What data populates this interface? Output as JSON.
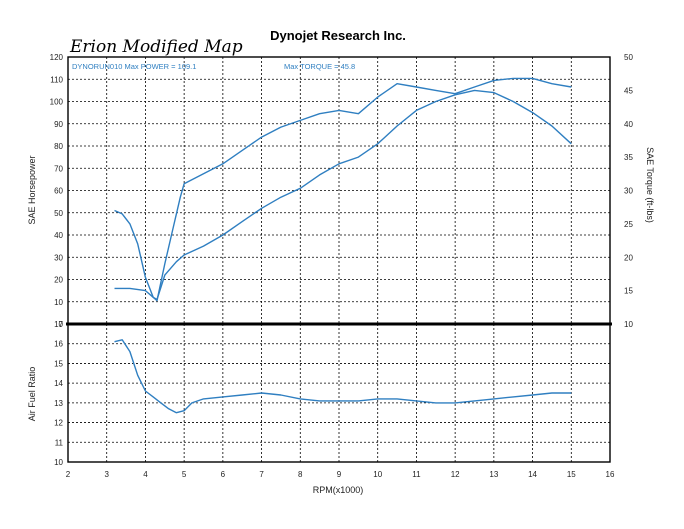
{
  "header": {
    "company": "Dynojet Research Inc.",
    "handwritten_title": "Erion Modified Map"
  },
  "colors": {
    "curve": "#2f7fc1",
    "grid": "#000000",
    "frame": "#000000",
    "text": "#222222"
  },
  "chart_data": [
    {
      "type": "line",
      "title": "",
      "legend": [
        "DYNORUN010 Max POWER = 109.1",
        "Max TORQUE = 45.8"
      ],
      "xlabel": "",
      "ylabel_left": "SAE Horsepower",
      "ylabel_right": "SAE Torque (ft-lbs)",
      "xlim": [
        2,
        16
      ],
      "ylim_left": [
        0,
        120
      ],
      "ylim_right": [
        10,
        50
      ],
      "x_ticks": [
        "2",
        "3",
        "4",
        "5",
        "6",
        "7",
        "8",
        "9",
        "10",
        "11",
        "12",
        "13",
        "14",
        "15",
        "16"
      ],
      "y_left_ticks": [
        "0",
        "10",
        "20",
        "30",
        "40",
        "50",
        "60",
        "70",
        "80",
        "90",
        "100",
        "110",
        "120"
      ],
      "y_right_ticks": [
        "10",
        "15",
        "20",
        "25",
        "30",
        "35",
        "40",
        "45",
        "50"
      ],
      "grid": true,
      "series": [
        {
          "name": "Power",
          "axis": "left",
          "x": [
            3.2,
            3.6,
            4.0,
            4.2,
            4.3,
            4.5,
            4.8,
            5.0,
            5.5,
            6.0,
            6.5,
            7.0,
            7.5,
            8.0,
            8.5,
            9.0,
            9.5,
            10.0,
            10.5,
            11.0,
            11.5,
            12.0,
            12.5,
            13.0,
            13.5,
            14.0,
            14.5,
            15.0
          ],
          "y": [
            16,
            16,
            15,
            12,
            11,
            22,
            28,
            31,
            35,
            40,
            46,
            52,
            57,
            61,
            67,
            72,
            75,
            81,
            89,
            96,
            100,
            103,
            105,
            104,
            100,
            95,
            89,
            81
          ]
        },
        {
          "name": "Torque",
          "axis": "right",
          "x": [
            3.2,
            3.4,
            3.6,
            3.8,
            4.0,
            4.2,
            4.3,
            4.5,
            4.7,
            4.9,
            5.0,
            5.5,
            6.0,
            6.5,
            7.0,
            7.5,
            8.0,
            8.5,
            9.0,
            9.5,
            10.0,
            10.5,
            11.0,
            11.5,
            12.0,
            12.5,
            13.0,
            13.5,
            14.0,
            14.5,
            15.0
          ],
          "y": [
            27,
            26.5,
            25,
            22,
            17,
            14,
            13.5,
            19,
            24,
            29,
            31,
            32.5,
            34,
            36,
            38,
            39.5,
            40.5,
            41.5,
            42,
            41.5,
            44,
            46,
            45.5,
            45,
            44.5,
            45.5,
            46.5,
            46.8,
            46.8,
            46,
            45.5
          ]
        }
      ]
    },
    {
      "type": "line",
      "title": "",
      "xlabel": "RPM(x1000)",
      "ylabel": "Air Fuel Ratio",
      "xlim": [
        2,
        16
      ],
      "ylim": [
        10,
        17
      ],
      "x_ticks": [
        "2",
        "3",
        "4",
        "5",
        "6",
        "7",
        "8",
        "9",
        "10",
        "11",
        "12",
        "13",
        "14",
        "15",
        "16"
      ],
      "y_ticks": [
        "10",
        "11",
        "12",
        "13",
        "14",
        "15",
        "16",
        "17"
      ],
      "grid": true,
      "series": [
        {
          "name": "Air Fuel Ratio",
          "x": [
            3.2,
            3.4,
            3.6,
            3.8,
            4.0,
            4.2,
            4.4,
            4.6,
            4.8,
            5.0,
            5.2,
            5.5,
            6.0,
            6.5,
            7.0,
            7.5,
            8.0,
            8.5,
            9.0,
            9.5,
            10.0,
            10.5,
            11.0,
            11.5,
            12.0,
            12.5,
            13.0,
            13.5,
            14.0,
            14.5,
            15.0
          ],
          "y": [
            16.1,
            16.2,
            15.6,
            14.4,
            13.6,
            13.3,
            13.0,
            12.7,
            12.5,
            12.6,
            13.0,
            13.2,
            13.3,
            13.4,
            13.5,
            13.4,
            13.2,
            13.1,
            13.1,
            13.1,
            13.2,
            13.2,
            13.1,
            13.0,
            13.0,
            13.1,
            13.2,
            13.3,
            13.4,
            13.5,
            13.5
          ]
        }
      ]
    }
  ]
}
